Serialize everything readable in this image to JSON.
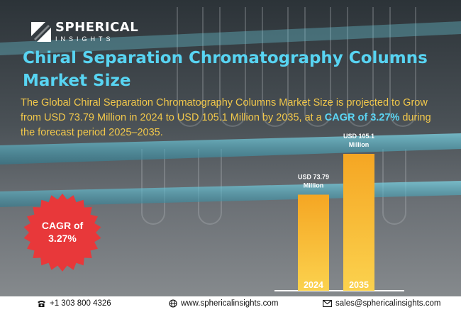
{
  "brand": {
    "name": "SPHERICAL",
    "sub": "INSIGHTS"
  },
  "title": "Chiral Separation Chromatography Columns Market Size",
  "description": {
    "part1": "The Global Chiral Separation Chromatography Columns Market Size is projected to Grow from USD 73.79 Million in 2024 to USD 105.1 Million by 2035, at a ",
    "highlight": "CAGR of 3.27%",
    "part2": " during the forecast period 2025–2035."
  },
  "badge": {
    "line1": "CAGR of",
    "line2": "3.27%"
  },
  "colors": {
    "title": "#58d4f2",
    "description": "#f2c84b",
    "highlight": "#5cd6f5",
    "badge": "#e8383a",
    "bar_top": "#f5a623",
    "bar_bottom": "#fbd24e"
  },
  "chart_data": {
    "type": "bar",
    "categories": [
      "2024",
      "2035"
    ],
    "values": [
      73.79,
      105.1
    ],
    "value_labels": [
      [
        "USD 73.79",
        "Million"
      ],
      [
        "USD 105.1",
        "Million"
      ]
    ],
    "unit": "USD Million",
    "ylim": [
      0,
      105.1
    ]
  },
  "footer": {
    "phone": "+1 303 800 4326",
    "website": "www.sphericalinsights.com",
    "email": "sales@sphericalinsights.com",
    "phone_icon": "phone-icon",
    "web_icon": "globe-icon",
    "email_icon": "mail-icon"
  }
}
